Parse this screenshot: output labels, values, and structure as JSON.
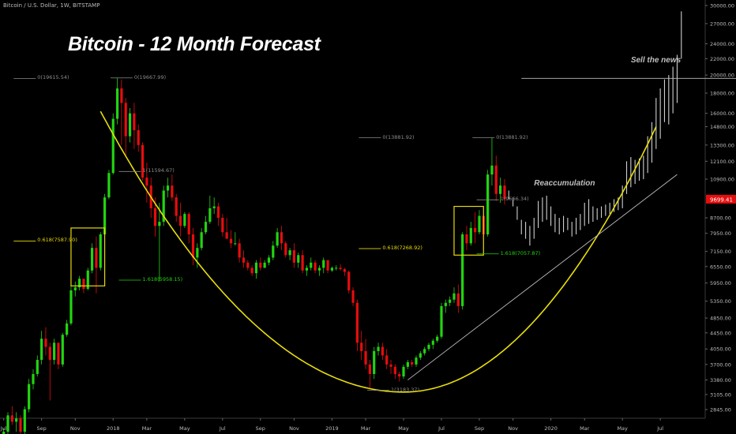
{
  "header": {
    "symbol_line": "Bitcoin / U.S. Dollar, 1W, BITSTAMP"
  },
  "colors": {
    "up": "#22d411",
    "down": "#e60d0d",
    "projection": "#cfcfcf",
    "curve": "#e8df0a",
    "fib_box": "#e6d80c",
    "fib_green": "#22d411",
    "fib_yellow": "#e6d80c",
    "price_tag": "#e60d0d"
  },
  "chart_data": {
    "type": "candlestick",
    "title": "Bitcoin - 12 Month Forecast",
    "y_scale": "log",
    "y_ticks": [
      2845,
      3105,
      3380,
      3700,
      4050,
      4450,
      4850,
      5350,
      5950,
      6550,
      7150,
      7950,
      8700,
      9699.41,
      10900,
      12100,
      13300,
      14800,
      16000,
      18000,
      20000,
      22000,
      24000,
      27000,
      30000
    ],
    "y_tick_labels": [
      "2845.00",
      "3105.00",
      "3380.00",
      "3700.00",
      "4050.00",
      "4450.00",
      "4850.00",
      "5350.00",
      "5950.00",
      "6550.00",
      "7150.00",
      "7950.00",
      "8700.00",
      "9699.41",
      "10900.00",
      "12100.00",
      "13300.00",
      "14800.00",
      "16000.00",
      "18000.00",
      "20000.00",
      "22000.00",
      "24000.00",
      "27000.00",
      "30000.00"
    ],
    "current_price_label": "9699.41",
    "x_tick_labels": [
      "Jul",
      "Sep",
      "Nov",
      "2018",
      "Mar",
      "May",
      "Jul",
      "Sep",
      "Nov",
      "2019",
      "Mar",
      "May",
      "Jul",
      "Sep",
      "Nov",
      "2020",
      "Mar",
      "May",
      "Jul"
    ],
    "x_tick_weeks": [
      0,
      9,
      17,
      26,
      34,
      43,
      52,
      61,
      69,
      78,
      86,
      95,
      104,
      113,
      121,
      130,
      138,
      147,
      156
    ],
    "weeks_total": 158,
    "candles_ohlc": [
      [
        2400,
        2550,
        2300,
        2500
      ],
      [
        2500,
        2800,
        2450,
        2750
      ],
      [
        2750,
        2900,
        2600,
        2650
      ],
      [
        2650,
        2800,
        2500,
        2700
      ],
      [
        2700,
        2750,
        2400,
        2500
      ],
      [
        2500,
        2900,
        2450,
        2850
      ],
      [
        2850,
        3400,
        2800,
        3300
      ],
      [
        3300,
        3600,
        3200,
        3500
      ],
      [
        3500,
        3900,
        3450,
        3800
      ],
      [
        3800,
        4500,
        3700,
        4300
      ],
      [
        4300,
        4600,
        3900,
        4100
      ],
      [
        4100,
        4200,
        3000,
        3800
      ],
      [
        3800,
        4300,
        3700,
        4200
      ],
      [
        4200,
        4100,
        3600,
        3700
      ],
      [
        3700,
        4450,
        3650,
        4400
      ],
      [
        4400,
        4800,
        4350,
        4700
      ],
      [
        4700,
        5900,
        4650,
        5700
      ],
      [
        5700,
        6000,
        5500,
        5800
      ],
      [
        5800,
        6200,
        5700,
        6100
      ],
      [
        6100,
        5950,
        5600,
        5750
      ],
      [
        5750,
        6500,
        5700,
        6400
      ],
      [
        6400,
        7500,
        6300,
        7300
      ],
      [
        7300,
        7800,
        5600,
        6500
      ],
      [
        6500,
        8000,
        6400,
        7900
      ],
      [
        7900,
        10000,
        7800,
        9800
      ],
      [
        9800,
        11500,
        9700,
        11300
      ],
      [
        11300,
        16000,
        11200,
        15500
      ],
      [
        15500,
        19667,
        15000,
        18500
      ],
      [
        18500,
        19500,
        13300,
        17000
      ],
      [
        17000,
        17500,
        12500,
        14000
      ],
      [
        14000,
        16500,
        13500,
        16000
      ],
      [
        16000,
        17000,
        13000,
        14500
      ],
      [
        14500,
        15000,
        12800,
        13300
      ],
      [
        13300,
        13500,
        10800,
        11000
      ],
      [
        11000,
        12000,
        9500,
        10500
      ],
      [
        10500,
        11000,
        8700,
        9200
      ],
      [
        9200,
        9800,
        7800,
        8300
      ],
      [
        8300,
        9500,
        6000,
        8500
      ],
      [
        8500,
        10500,
        8300,
        10200
      ],
      [
        10200,
        11000,
        9800,
        10500
      ],
      [
        10500,
        11200,
        9600,
        9800
      ],
      [
        9800,
        10000,
        8500,
        8800
      ],
      [
        8800,
        9500,
        7800,
        8300
      ],
      [
        8300,
        9000,
        8200,
        8900
      ],
      [
        8900,
        9000,
        7500,
        7900
      ],
      [
        7900,
        8200,
        6600,
        6900
      ],
      [
        6900,
        7500,
        6500,
        7300
      ],
      [
        7300,
        8200,
        7200,
        8000
      ],
      [
        8000,
        8800,
        7900,
        8500
      ],
      [
        8500,
        9900,
        8400,
        9200
      ],
      [
        9200,
        9800,
        8900,
        9300
      ],
      [
        9300,
        9500,
        8300,
        8700
      ],
      [
        8700,
        8900,
        7800,
        8000
      ],
      [
        8000,
        8700,
        7700,
        7700
      ],
      [
        7700,
        8100,
        7300,
        7500
      ],
      [
        7500,
        8000,
        7400,
        7500
      ],
      [
        7500,
        7700,
        6700,
        6900
      ],
      [
        6900,
        7200,
        6500,
        6700
      ],
      [
        6700,
        6800,
        6400,
        6500
      ],
      [
        6500,
        6600,
        6200,
        6300
      ],
      [
        6300,
        6800,
        6100,
        6700
      ],
      [
        6700,
        6900,
        6400,
        6500
      ],
      [
        6500,
        6800,
        6500,
        6700
      ],
      [
        6700,
        7000,
        6600,
        6900
      ],
      [
        6900,
        7600,
        6800,
        7400
      ],
      [
        7400,
        8200,
        7300,
        8000
      ],
      [
        8000,
        8300,
        7200,
        7500
      ],
      [
        7500,
        7600,
        6900,
        7000
      ],
      [
        7000,
        7300,
        6800,
        7200
      ],
      [
        7200,
        7500,
        6500,
        6700
      ],
      [
        6700,
        7100,
        6500,
        7000
      ],
      [
        7000,
        7200,
        6300,
        6400
      ],
      [
        6400,
        6600,
        6200,
        6500
      ],
      [
        6500,
        6900,
        6400,
        6700
      ],
      [
        6700,
        6800,
        6300,
        6400
      ],
      [
        6400,
        6600,
        6200,
        6500
      ],
      [
        6500,
        6900,
        6300,
        6800
      ],
      [
        6800,
        6700,
        6300,
        6400
      ],
      [
        6400,
        6550,
        6350,
        6500
      ],
      [
        6500,
        6600,
        6400,
        6500
      ],
      [
        6500,
        6650,
        6400,
        6450
      ],
      [
        6450,
        6500,
        6200,
        6350
      ],
      [
        6350,
        6400,
        5600,
        5700
      ],
      [
        5700,
        5800,
        5200,
        5300
      ],
      [
        5300,
        5400,
        4000,
        4200
      ],
      [
        4200,
        4500,
        3800,
        4000
      ],
      [
        4000,
        4300,
        3600,
        3700
      ],
      [
        3700,
        3800,
        3200,
        3500
      ],
      [
        3500,
        4100,
        3400,
        4000
      ],
      [
        4000,
        4200,
        3900,
        4100
      ],
      [
        4100,
        4200,
        3800,
        3900
      ],
      [
        3900,
        4050,
        3600,
        3700
      ],
      [
        3700,
        3800,
        3500,
        3650
      ],
      [
        3650,
        3700,
        3400,
        3500
      ],
      [
        3500,
        3550,
        3350,
        3450
      ],
      [
        3450,
        3700,
        3400,
        3650
      ],
      [
        3650,
        3800,
        3600,
        3750
      ],
      [
        3750,
        3800,
        3650,
        3700
      ],
      [
        3700,
        3900,
        3650,
        3850
      ],
      [
        3850,
        4000,
        3800,
        3950
      ],
      [
        3950,
        4100,
        3900,
        4050
      ],
      [
        4050,
        4200,
        4000,
        4150
      ],
      [
        4150,
        4300,
        4050,
        4250
      ],
      [
        4250,
        4400,
        4200,
        4350
      ],
      [
        4350,
        5300,
        4300,
        5200
      ],
      [
        5200,
        5400,
        5000,
        5300
      ],
      [
        5300,
        5500,
        5200,
        5400
      ],
      [
        5400,
        5800,
        5300,
        5600
      ],
      [
        5600,
        5900,
        5000,
        5200
      ],
      [
        5200,
        8000,
        5100,
        7900
      ],
      [
        7900,
        8300,
        7200,
        7500
      ],
      [
        7500,
        8500,
        7400,
        8200
      ],
      [
        8200,
        9000,
        7500,
        8000
      ],
      [
        8000,
        9100,
        7900,
        8800
      ],
      [
        8800,
        9000,
        7600,
        7900
      ],
      [
        7900,
        11500,
        7800,
        11200
      ],
      [
        11200,
        13881,
        10500,
        11800
      ],
      [
        11800,
        12500,
        9600,
        10000
      ],
      [
        10000,
        11000,
        9500,
        10500
      ],
      [
        10500,
        10900,
        9400,
        9699
      ]
    ],
    "projection_bars": [
      [
        9700,
        10200
      ],
      [
        9300,
        9800
      ],
      [
        8600,
        9300
      ],
      [
        7900,
        8600
      ],
      [
        7700,
        8500
      ],
      [
        7400,
        8300
      ],
      [
        7700,
        8700
      ],
      [
        8200,
        9600
      ],
      [
        8500,
        9800
      ],
      [
        8600,
        9900
      ],
      [
        8300,
        9300
      ],
      [
        8000,
        8900
      ],
      [
        7900,
        8700
      ],
      [
        8000,
        8800
      ],
      [
        8100,
        8700
      ],
      [
        7800,
        8500
      ],
      [
        7900,
        8700
      ],
      [
        8100,
        8900
      ],
      [
        8300,
        9500
      ],
      [
        8400,
        9700
      ],
      [
        8500,
        9300
      ],
      [
        8600,
        9200
      ],
      [
        8700,
        9300
      ],
      [
        8800,
        9400
      ],
      [
        8900,
        9500
      ],
      [
        9000,
        9700
      ],
      [
        9100,
        9800
      ],
      [
        9200,
        10500
      ],
      [
        10000,
        12100
      ],
      [
        10400,
        12400
      ],
      [
        10600,
        12200
      ],
      [
        10800,
        12300
      ],
      [
        10900,
        12500
      ],
      [
        11300,
        14000
      ],
      [
        12000,
        15200
      ],
      [
        13000,
        17500
      ],
      [
        13800,
        18500
      ],
      [
        15200,
        19500
      ],
      [
        15000,
        20000
      ],
      [
        16000,
        21000
      ],
      [
        17000,
        22500
      ],
      [
        22000,
        29000
      ]
    ],
    "curve": {
      "start_week": 25,
      "start_price": 14800,
      "vertex_week": 95,
      "vertex_price": 3150,
      "end_week": 155,
      "end_price": 14800
    },
    "trendline": {
      "from_week": 96,
      "from_price": 3380,
      "to_week": 160,
      "to_price": 11200
    },
    "resistance_line": {
      "from_week": 123,
      "to_week": 176,
      "price": 19615
    },
    "fib_boxes": [
      {
        "from_week": 16,
        "to_week": 24,
        "low": 5850,
        "high": 8200
      },
      {
        "from_week": 107,
        "to_week": 114,
        "low": 7000,
        "high": 9300
      }
    ],
    "fib_labels": [
      {
        "text": "0(19615.54)",
        "week": 8,
        "price": 19615,
        "color": "grey"
      },
      {
        "text": "0(19667.99)",
        "week": 31,
        "price": 19668,
        "color": "grey"
      },
      {
        "text": "1(11594.67)",
        "week": 33,
        "price": 11400,
        "color": "grey"
      },
      {
        "text": "0.618(7587.90)",
        "week": 8,
        "price": 7600,
        "color": "yellow"
      },
      {
        "text": "1.618(5958.15)",
        "week": 33,
        "price": 6050,
        "color": "green"
      },
      {
        "text": "0(13881.92)",
        "week": 90,
        "price": 13881,
        "color": "grey"
      },
      {
        "text": "0(13881.92)",
        "week": 117,
        "price": 13881,
        "color": "grey"
      },
      {
        "text": "0.618(7268.92)",
        "week": 90,
        "price": 7270,
        "color": "yellow"
      },
      {
        "text": "1(9666.34)",
        "week": 118,
        "price": 9666,
        "color": "grey"
      },
      {
        "text": "1.618(7057.87)",
        "week": 118,
        "price": 7050,
        "color": "green"
      },
      {
        "text": "1(3183.37)",
        "week": 92,
        "price": 3183,
        "color": "grey"
      }
    ],
    "annotations": [
      {
        "text": "Sell the news",
        "week": 149,
        "price": 21500
      },
      {
        "text": "Reaccumulation",
        "week": 126,
        "price": 10500
      }
    ]
  }
}
